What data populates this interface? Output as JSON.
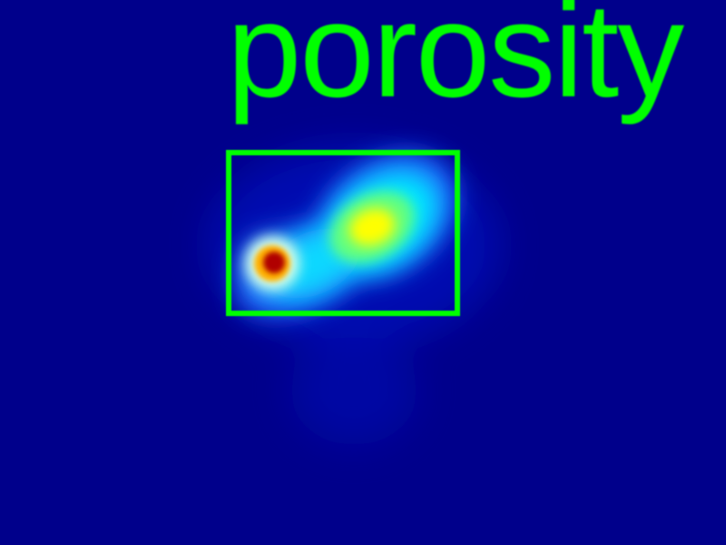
{
  "detection": {
    "label": "porosity"
  },
  "colors": {
    "background": "#00008b",
    "label_and_box": "#00ff00",
    "heat_low": "#00ffff",
    "heat_mid": "#ffff00",
    "heat_high": "#b00000"
  }
}
